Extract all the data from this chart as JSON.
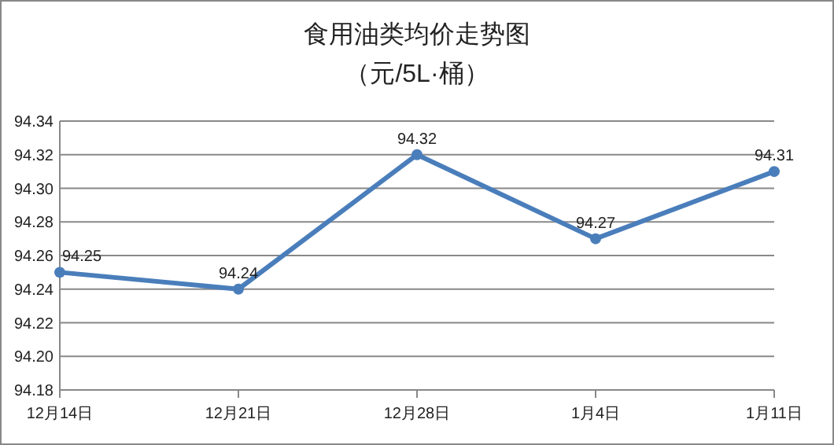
{
  "chart_data": {
    "type": "line",
    "title": "食用油类均价走势图",
    "subtitle": "（元/5L·桶）",
    "categories": [
      "12月14日",
      "12月21日",
      "12月28日",
      "1月4日",
      "1月11日"
    ],
    "series": [
      {
        "color": "#4a7ebb",
        "values": [
          94.25,
          94.24,
          94.32,
          94.27,
          94.31
        ]
      }
    ],
    "ylim": [
      94.18,
      94.34
    ],
    "yticks": [
      "94.18",
      "94.20",
      "94.22",
      "94.24",
      "94.26",
      "94.28",
      "94.30",
      "94.32",
      "94.34"
    ],
    "grid": "y",
    "marker": "circle",
    "line_style": "solid",
    "data_labels": true
  }
}
